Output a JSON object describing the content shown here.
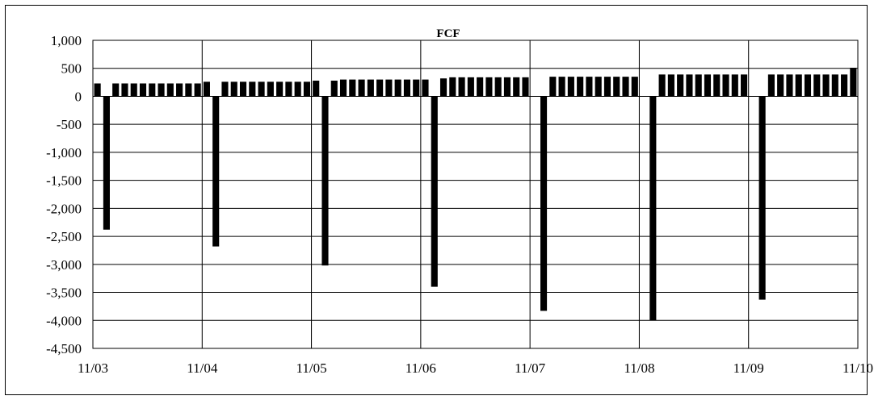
{
  "chart_data": {
    "type": "bar",
    "title": "FCF",
    "xlabel": "",
    "ylabel": "",
    "ylim": [
      -4500,
      1000
    ],
    "y_ticks": [
      1000,
      500,
      0,
      -500,
      -1000,
      -1500,
      -2000,
      -2500,
      -3000,
      -3500,
      -4000,
      -4500
    ],
    "y_tick_labels": [
      "1,000",
      "500",
      "0",
      "-500",
      "-1,000",
      "-1,500",
      "-2,000",
      "-2,500",
      "-3,000",
      "-3,500",
      "-4,000",
      "-4,500"
    ],
    "x_tick_labels": [
      "11/03",
      "11/04",
      "11/05",
      "11/06",
      "11/07",
      "11/08",
      "11/09",
      "11/10"
    ],
    "grid": true,
    "legend": "none",
    "bar_color": "#000000",
    "series": [
      {
        "values": [
          230,
          -2380,
          230,
          230,
          230,
          230,
          230,
          230,
          230,
          230,
          230,
          230,
          260,
          -2680,
          260,
          260,
          260,
          260,
          260,
          260,
          260,
          260,
          260,
          260,
          280,
          -3020,
          280,
          300,
          300,
          300,
          300,
          300,
          300,
          300,
          300,
          300,
          300,
          -3400,
          320,
          340,
          340,
          340,
          340,
          340,
          340,
          340,
          340,
          340,
          0,
          -3830,
          350,
          350,
          350,
          350,
          350,
          350,
          350,
          350,
          350,
          350,
          0,
          -4000,
          390,
          390,
          390,
          390,
          390,
          390,
          390,
          390,
          390,
          390,
          0,
          -3630,
          390,
          390,
          390,
          390,
          390,
          390,
          390,
          390,
          390,
          510
        ]
      }
    ]
  }
}
